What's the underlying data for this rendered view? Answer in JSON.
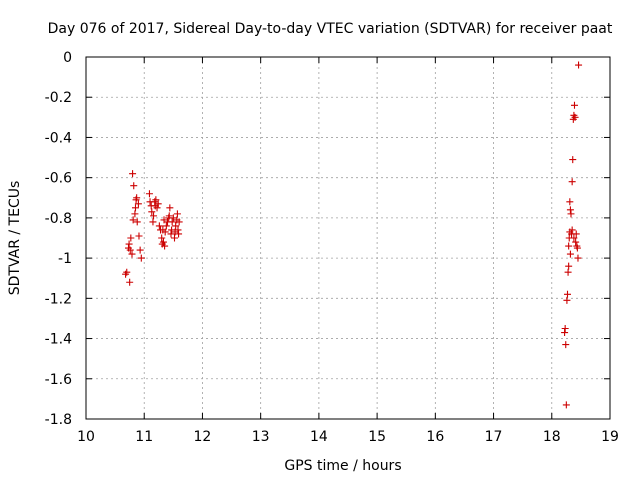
{
  "chart_data": {
    "type": "scatter",
    "title": "Day 076 of 2017, Sidereal Day-to-day VTEC variation (SDTVAR) for receiver paat",
    "xlabel": "GPS time / hours",
    "ylabel": "SDTVAR / TECUs",
    "xlim": [
      10,
      19
    ],
    "ylim": [
      -1.8,
      0
    ],
    "xticks": [
      10,
      11,
      12,
      13,
      14,
      15,
      16,
      17,
      18,
      19
    ],
    "yticks": [
      0,
      -0.2,
      -0.4,
      -0.6,
      -0.8,
      -1,
      -1.2,
      -1.4,
      -1.6,
      -1.8
    ],
    "xtick_labels": [
      "10",
      "11",
      "12",
      "13",
      "14",
      "15",
      "16",
      "17",
      "18",
      "19"
    ],
    "ytick_labels": [
      "0",
      "-0.2",
      "-0.4",
      "-0.6",
      "-0.8",
      "-1",
      "-1.2",
      "-1.4",
      "-1.6",
      "-1.8"
    ],
    "grid": true,
    "marker": "+",
    "color": "#cc0000",
    "series": [
      {
        "name": "SDTVAR",
        "points": [
          [
            10.68,
            -1.08
          ],
          [
            10.7,
            -1.07
          ],
          [
            10.73,
            -0.95
          ],
          [
            10.74,
            -0.93
          ],
          [
            10.75,
            -1.12
          ],
          [
            10.76,
            -0.96
          ],
          [
            10.77,
            -0.9
          ],
          [
            10.79,
            -0.98
          ],
          [
            10.8,
            -0.58
          ],
          [
            10.81,
            -0.81
          ],
          [
            10.82,
            -0.64
          ],
          [
            10.84,
            -0.78
          ],
          [
            10.85,
            -0.75
          ],
          [
            10.86,
            -0.71
          ],
          [
            10.87,
            -0.7
          ],
          [
            10.88,
            -0.82
          ],
          [
            10.9,
            -0.73
          ],
          [
            10.91,
            -0.89
          ],
          [
            10.93,
            -0.96
          ],
          [
            10.95,
            -1.0
          ],
          [
            11.09,
            -0.68
          ],
          [
            11.1,
            -0.72
          ],
          [
            11.12,
            -0.74
          ],
          [
            11.13,
            -0.77
          ],
          [
            11.15,
            -0.82
          ],
          [
            11.16,
            -0.79
          ],
          [
            11.18,
            -0.72
          ],
          [
            11.19,
            -0.74
          ],
          [
            11.2,
            -0.71
          ],
          [
            11.22,
            -0.75
          ],
          [
            11.24,
            -0.73
          ],
          [
            11.26,
            -0.84
          ],
          [
            11.28,
            -0.86
          ],
          [
            11.3,
            -0.9
          ],
          [
            11.31,
            -0.93
          ],
          [
            11.32,
            -0.86
          ],
          [
            11.33,
            -0.92
          ],
          [
            11.34,
            -0.81
          ],
          [
            11.35,
            -0.94
          ],
          [
            11.36,
            -0.87
          ],
          [
            11.38,
            -0.84
          ],
          [
            11.4,
            -0.82
          ],
          [
            11.42,
            -0.8
          ],
          [
            11.43,
            -0.79
          ],
          [
            11.44,
            -0.75
          ],
          [
            11.46,
            -0.88
          ],
          [
            11.47,
            -0.86
          ],
          [
            11.48,
            -0.82
          ],
          [
            11.5,
            -0.8
          ],
          [
            11.52,
            -0.9
          ],
          [
            11.53,
            -0.87
          ],
          [
            11.54,
            -0.84
          ],
          [
            11.56,
            -0.81
          ],
          [
            11.57,
            -0.78
          ],
          [
            11.58,
            -0.86
          ],
          [
            11.59,
            -0.88
          ],
          [
            11.6,
            -0.82
          ],
          [
            18.22,
            -1.37
          ],
          [
            18.23,
            -1.35
          ],
          [
            18.24,
            -1.43
          ],
          [
            18.25,
            -1.73
          ],
          [
            18.26,
            -1.21
          ],
          [
            18.27,
            -1.18
          ],
          [
            18.28,
            -1.07
          ],
          [
            18.29,
            -1.04
          ],
          [
            18.3,
            -0.9
          ],
          [
            18.31,
            -0.87
          ],
          [
            18.31,
            -0.72
          ],
          [
            18.32,
            -0.76
          ],
          [
            18.33,
            -0.78
          ],
          [
            18.34,
            -0.88
          ],
          [
            18.35,
            -0.62
          ],
          [
            18.36,
            -0.51
          ],
          [
            18.37,
            -0.31
          ],
          [
            18.38,
            -0.29
          ],
          [
            18.39,
            -0.24
          ],
          [
            18.4,
            -0.3
          ],
          [
            18.41,
            -0.92
          ],
          [
            18.42,
            -0.88
          ],
          [
            18.43,
            -0.94
          ],
          [
            18.44,
            -0.95
          ],
          [
            18.45,
            -1.0
          ],
          [
            18.46,
            -0.04
          ],
          [
            18.29,
            -0.94
          ],
          [
            18.32,
            -0.98
          ],
          [
            18.35,
            -0.86
          ],
          [
            18.38,
            -0.9
          ]
        ]
      }
    ]
  }
}
